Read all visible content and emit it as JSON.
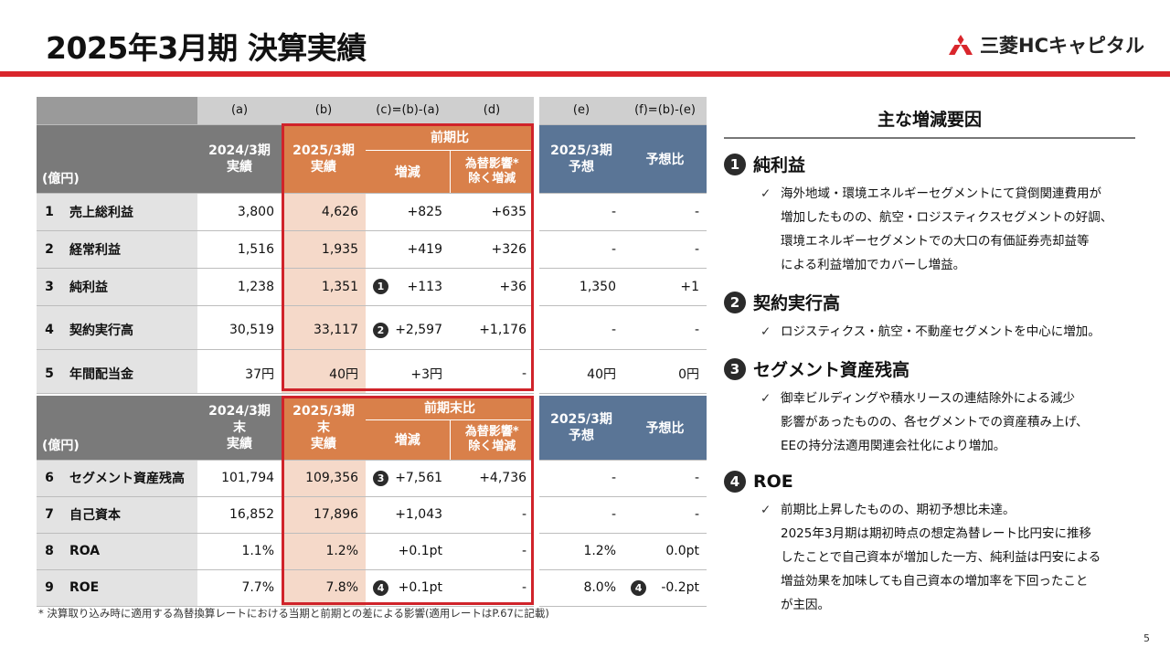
{
  "title": "2025年3月期 決算実績",
  "logo": {
    "text": "三菱HCキャピタル"
  },
  "colors": {
    "accent_red": "#d9262c",
    "header_gray": "#7a7a7a",
    "orange": "#d9804a",
    "blue": "#5a7596",
    "pink": "#f5d9c9"
  },
  "table1": {
    "col_codes": [
      "(a)",
      "(b)",
      "(c)=(b)-(a)",
      "(d)",
      "(e)",
      "(f)=(b)-(e)"
    ],
    "unit": "(億円)",
    "col_a": "2024/3期\n実績",
    "col_b": "2025/3期\n実績",
    "group_cd": "前期比",
    "col_c": "増減",
    "col_d": "為替影響*\n除く増減",
    "col_e": "2025/3期\n予想",
    "col_f": "予想比",
    "rows": [
      {
        "no": "1",
        "label": "売上総利益",
        "a": "3,800",
        "b": "4,626",
        "c": "+825",
        "c_mark": "",
        "d": "+635",
        "e": "-",
        "f": "-",
        "f_mark": ""
      },
      {
        "no": "2",
        "label": "経常利益",
        "a": "1,516",
        "b": "1,935",
        "c": "+419",
        "c_mark": "",
        "d": "+326",
        "e": "-",
        "f": "-",
        "f_mark": ""
      },
      {
        "no": "3",
        "label": "純利益",
        "a": "1,238",
        "b": "1,351",
        "c": "+113",
        "c_mark": "1",
        "d": "+36",
        "e": "1,350",
        "f": "+1",
        "f_mark": ""
      },
      {
        "no": "4",
        "label": "契約実行高",
        "a": "30,519",
        "b": "33,117",
        "c": "+2,597",
        "c_mark": "2",
        "d": "+1,176",
        "e": "-",
        "f": "-",
        "f_mark": ""
      },
      {
        "no": "5",
        "label": "年間配当金",
        "a": "37円",
        "b": "40円",
        "c": "+3円",
        "c_mark": "",
        "d": "-",
        "e": "40円",
        "f": "0円",
        "f_mark": ""
      }
    ]
  },
  "table2": {
    "unit": "(億円)",
    "col_a": "2024/3期末\n実績",
    "col_b": "2025/3期末\n実績",
    "group_cd": "前期末比",
    "col_c": "増減",
    "col_d": "為替影響*\n除く増減",
    "col_e": "2025/3期\n予想",
    "col_f": "予想比",
    "rows": [
      {
        "no": "6",
        "label": "セグメント資産残高",
        "a": "101,794",
        "b": "109,356",
        "c": "+7,561",
        "c_mark": "3",
        "d": "+4,736",
        "e": "-",
        "f": "-",
        "f_mark": ""
      },
      {
        "no": "7",
        "label": "自己資本",
        "a": "16,852",
        "b": "17,896",
        "c": "+1,043",
        "c_mark": "",
        "d": "-",
        "e": "-",
        "f": "-",
        "f_mark": ""
      },
      {
        "no": "8",
        "label": "ROA",
        "a": "1.1%",
        "b": "1.2%",
        "c": "+0.1pt",
        "c_mark": "",
        "d": "-",
        "e": "1.2%",
        "f": "0.0pt",
        "f_mark": ""
      },
      {
        "no": "9",
        "label": "ROE",
        "a": "7.7%",
        "b": "7.8%",
        "c": "+0.1pt",
        "c_mark": "4",
        "d": "-",
        "e": "8.0%",
        "f": "-0.2pt",
        "f_mark": "4"
      }
    ]
  },
  "footnote": "*  決算取り込み時に適用する為替換算レートにおける当期と前期との差による影響(適用レートはP.67に記載)",
  "page_number": "5",
  "panel": {
    "title": "主な増減要因",
    "sections": [
      {
        "num": "1",
        "heading": "純利益",
        "lines": [
          "海外地域・環境エネルギーセグメントにて貸倒関連費用が",
          "増加したものの、航空・ロジスティクスセグメントの好調、",
          "環境エネルギーセグメントでの大口の有価証券売却益等",
          "による利益増加でカバーし増益。"
        ]
      },
      {
        "num": "2",
        "heading": "契約実行高",
        "lines": [
          "ロジスティクス・航空・不動産セグメントを中心に増加。"
        ]
      },
      {
        "num": "3",
        "heading": "セグメント資産残高",
        "lines": [
          "御幸ビルディングや積水リースの連結除外による減少",
          "影響があったものの、各セグメントでの資産積み上げ、",
          "EEの持分法適用関連会社化により増加。"
        ]
      },
      {
        "num": "4",
        "heading": "ROE",
        "lines": [
          "前期比上昇したものの、期初予想比未達。",
          "2025年3月期は期初時点の想定為替レート比円安に推移",
          "したことで自己資本が増加した一方、純利益は円安による",
          "増益効果を加味しても自己資本の増加率を下回ったこと",
          "が主因。"
        ]
      }
    ]
  }
}
